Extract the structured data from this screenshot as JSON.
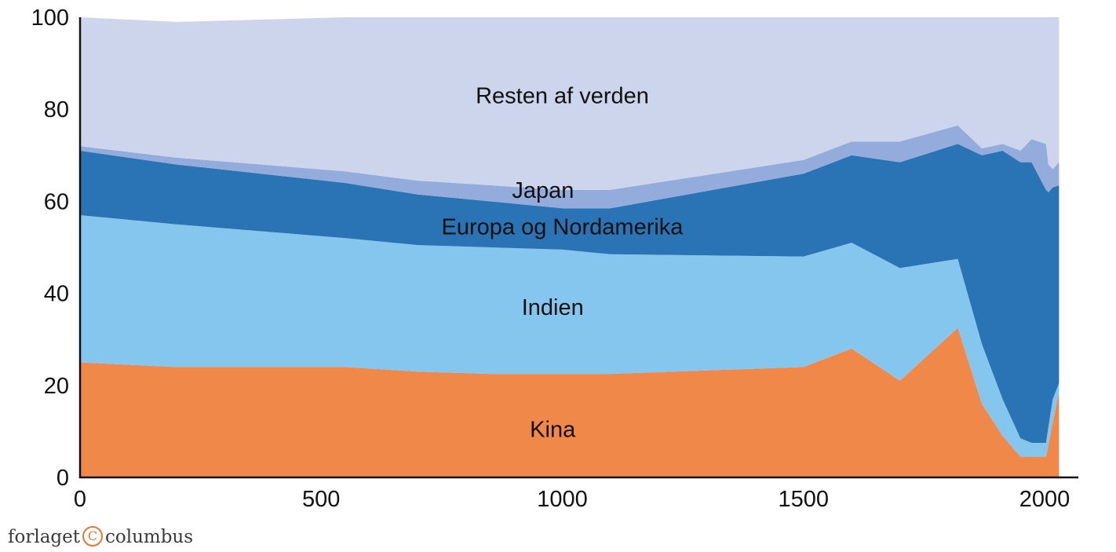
{
  "chart_data": {
    "type": "area",
    "stacked": true,
    "title": "",
    "xlabel": "",
    "ylabel": "",
    "xlim": [
      0,
      2070
    ],
    "ylim": [
      0,
      100
    ],
    "x_ticks": [
      0,
      500,
      1000,
      1500,
      2000
    ],
    "y_ticks": [
      0,
      20,
      40,
      60,
      80,
      100
    ],
    "grid": false,
    "legend": "none",
    "x": [
      0,
      200,
      550,
      700,
      850,
      1000,
      1100,
      1500,
      1600,
      1700,
      1820,
      1870,
      1913,
      1950,
      1973,
      2003,
      2008,
      2017,
      2030
    ],
    "series": [
      {
        "name": "Kina",
        "color": "#f0884a",
        "values": [
          25,
          24,
          24,
          23,
          22.5,
          22.5,
          22.5,
          24,
          28,
          21,
          32.5,
          16,
          9,
          4.5,
          4.5,
          4.5,
          7,
          12,
          18.5
        ]
      },
      {
        "name": "Indien",
        "color": "#85c6ef",
        "values": [
          32,
          31,
          28,
          27.5,
          27.5,
          27,
          26,
          24,
          23,
          24.5,
          15,
          13,
          8,
          4,
          3,
          3,
          4,
          5,
          2
        ]
      },
      {
        "name": "Europa og Nordamerika",
        "color": "#2a74b5",
        "values": [
          14,
          13,
          12,
          11,
          10,
          9,
          10,
          18,
          19,
          23,
          25,
          41,
          54,
          60,
          61,
          55,
          51,
          46,
          43
        ]
      },
      {
        "name": "Japan",
        "color": "#94acdb",
        "values": [
          1,
          1.5,
          2.5,
          3,
          3.5,
          4,
          4,
          3,
          3,
          4.5,
          4,
          1.5,
          1.5,
          2.5,
          5,
          10,
          6,
          4,
          5
        ]
      },
      {
        "name": "Resten af verden",
        "color": "#cdd5ed",
        "values": [
          28,
          29.5,
          33.5,
          35.5,
          36.5,
          37.5,
          37.5,
          31,
          27,
          27,
          23.5,
          28.5,
          27.5,
          29,
          26.5,
          27.5,
          32,
          33,
          31.5
        ]
      }
    ],
    "annotations": [
      {
        "text": "Resten af verden",
        "x": 1000,
        "y": 83
      },
      {
        "text": "Japan",
        "x": 960,
        "y": 62.5
      },
      {
        "text": "Europa og Nordamerika",
        "x": 1000,
        "y": 54.5
      },
      {
        "text": "Indien",
        "x": 980,
        "y": 37
      },
      {
        "text": "Kina",
        "x": 980,
        "y": 10.5
      }
    ]
  },
  "logo": {
    "left": "forlaget",
    "mark": "C",
    "right": "columbus"
  }
}
